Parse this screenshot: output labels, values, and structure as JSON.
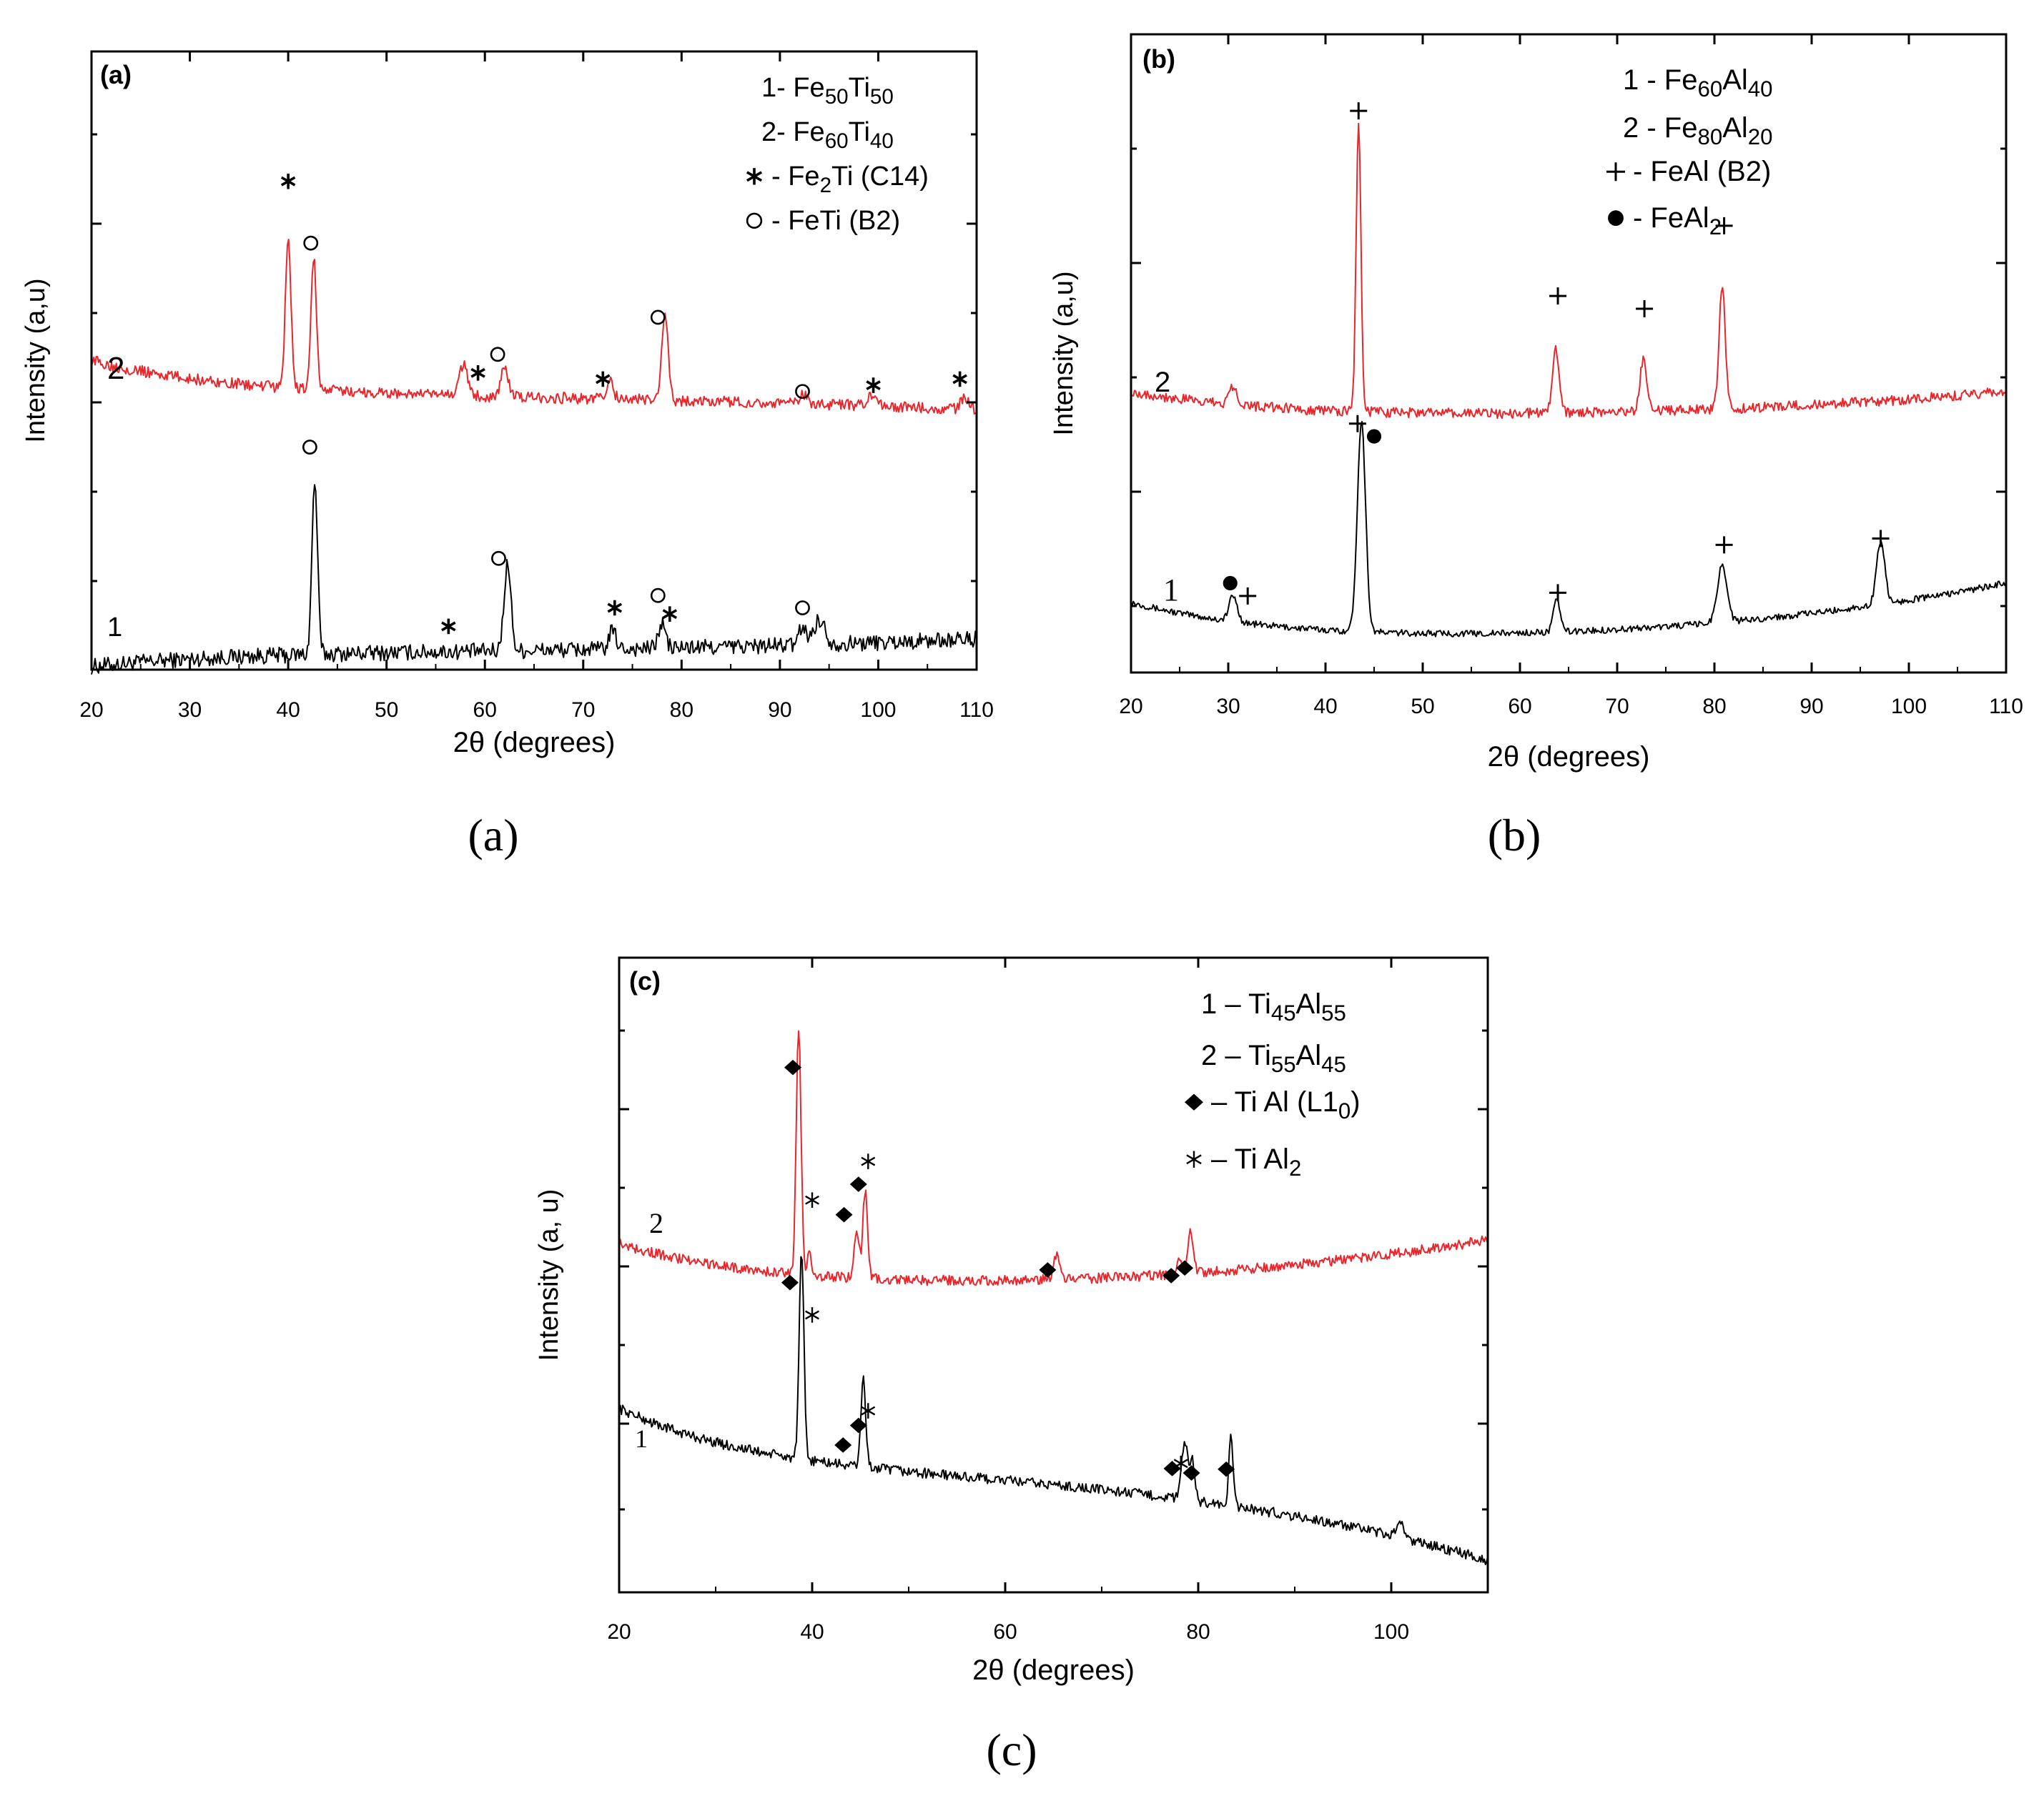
{
  "figure_type": "X-ray diffraction patterns",
  "colors": {
    "curve_1": "#000000",
    "curve_2": "#e8262b",
    "axis": "#000000"
  },
  "chart_data": [
    {
      "id": "a",
      "type": "line",
      "caption": "(a)",
      "panel_tag": "(a)",
      "xlabel": "2θ (degrees)",
      "ylabel": "Intensity (a,u)",
      "xlim": [
        20,
        110
      ],
      "ylim": [
        0,
        100
      ],
      "xticks": [
        20,
        30,
        40,
        50,
        60,
        70,
        80,
        90,
        100,
        110
      ],
      "legend": [
        {
          "id": "l1",
          "prefix": "1- Fe",
          "sub1": "50",
          "mid": "Ti",
          "sub2": "50",
          "tail": ""
        },
        {
          "id": "l2",
          "prefix": "2- Fe",
          "sub1": "60",
          "mid": "Ti",
          "sub2": "40",
          "tail": ""
        },
        {
          "id": "l3",
          "symbol": "asterisk",
          "prefix": " - Fe",
          "sub1": "2",
          "mid": "Ti (C14)",
          "sub2": "",
          "tail": ""
        },
        {
          "id": "l4",
          "symbol": "circle",
          "prefix": " - FeTi (B2)",
          "sub1": "",
          "mid": "",
          "sub2": "",
          "tail": ""
        }
      ],
      "series": [
        {
          "name": "1",
          "label": "1",
          "color": "#000000",
          "baseline": 3,
          "noise": 1.3,
          "start": 0.5,
          "end": 5,
          "peaks": [
            [
              42.7,
              28,
              0.4
            ],
            [
              62.3,
              14,
              0.5
            ],
            [
              73,
              3,
              0.5
            ],
            [
              78,
              4,
              0.5
            ],
            [
              92.3,
              3,
              0.5
            ],
            [
              94,
              4,
              0.8
            ]
          ]
        },
        {
          "name": "2",
          "label": "2",
          "color": "#e8262b",
          "baseline": 44,
          "noise": 0.9,
          "start": 50,
          "end": 42,
          "peaks": [
            [
              40,
              24,
              0.4
            ],
            [
              42.6,
              21,
              0.4
            ],
            [
              57.8,
              5,
              0.6
            ],
            [
              62,
              5,
              0.5
            ],
            [
              72.7,
              3,
              0.5
            ],
            [
              78.3,
              14,
              0.45
            ],
            [
              92.4,
              1.5,
              0.5
            ],
            [
              99.3,
              1.5,
              0.6
            ],
            [
              108.8,
              2,
              0.6
            ]
          ]
        }
      ],
      "markers": [
        {
          "sym": "asterisk",
          "x": 40,
          "y": 79
        },
        {
          "sym": "circle",
          "x": 42.3,
          "y": 69
        },
        {
          "sym": "asterisk",
          "x": 59.3,
          "y": 48
        },
        {
          "sym": "circle",
          "x": 61.3,
          "y": 51
        },
        {
          "sym": "asterisk",
          "x": 72,
          "y": 47
        },
        {
          "sym": "circle",
          "x": 77.6,
          "y": 57
        },
        {
          "sym": "circle",
          "x": 92.3,
          "y": 45
        },
        {
          "sym": "asterisk",
          "x": 99.5,
          "y": 46
        },
        {
          "sym": "asterisk",
          "x": 108.3,
          "y": 47
        },
        {
          "sym": "circle",
          "x": 42.2,
          "y": 36
        },
        {
          "sym": "circle",
          "x": 61.4,
          "y": 18
        },
        {
          "sym": "asterisk",
          "x": 56.3,
          "y": 7
        },
        {
          "sym": "asterisk",
          "x": 73.2,
          "y": 10
        },
        {
          "sym": "circle",
          "x": 77.6,
          "y": 12
        },
        {
          "sym": "asterisk",
          "x": 78.8,
          "y": 9
        },
        {
          "sym": "circle",
          "x": 92.3,
          "y": 10
        }
      ]
    },
    {
      "id": "b",
      "type": "line",
      "caption": "(b)",
      "panel_tag": "(b)",
      "xlabel": "2θ (degrees)",
      "ylabel": "Intensity (a,u)",
      "xlim": [
        20,
        110
      ],
      "ylim": [
        0,
        100
      ],
      "xticks": [
        20,
        30,
        40,
        50,
        60,
        70,
        80,
        90,
        100,
        110
      ],
      "legend": [
        {
          "id": "l1",
          "prefix": "1 - Fe",
          "sub1": "60",
          "mid": "Al",
          "sub2": "40",
          "tail": ""
        },
        {
          "id": "l2",
          "prefix": "2 - Fe",
          "sub1": "80",
          "mid": "Al",
          "sub2": "20",
          "tail": ""
        },
        {
          "id": "l3",
          "symbol": "plus",
          "prefix": " - FeAl (B2)",
          "sub1": "",
          "mid": "",
          "sub2": "",
          "tail": ""
        },
        {
          "id": "l4",
          "symbol": "dot",
          "prefix": " - FeAl",
          "sub1": "2",
          "mid": "",
          "sub2": "",
          "tail": ""
        }
      ],
      "series": [
        {
          "name": "1",
          "label": "1",
          "color": "#000000",
          "baseline": 5,
          "noise": 0.5,
          "start": 11,
          "end": 14,
          "peaks": [
            [
              30.5,
              4,
              0.6
            ],
            [
              43.7,
              33,
              0.6
            ],
            [
              63.8,
              5,
              0.5
            ],
            [
              80.8,
              9,
              0.7
            ],
            [
              97.1,
              10,
              0.6
            ]
          ]
        },
        {
          "name": "2",
          "label": "2",
          "color": "#e8262b",
          "baseline": 40,
          "noise": 0.8,
          "start": 44,
          "end": 44,
          "peaks": [
            [
              30.5,
              3,
              0.6
            ],
            [
              43.4,
              45,
              0.35
            ],
            [
              63.7,
              10,
              0.5
            ],
            [
              72.7,
              8,
              0.5
            ],
            [
              80.8,
              19,
              0.45
            ]
          ]
        }
      ],
      "markers": [
        {
          "sym": "plus",
          "x": 43.4,
          "y": 88
        },
        {
          "sym": "plus",
          "x": 63.9,
          "y": 59
        },
        {
          "sym": "plus",
          "x": 72.8,
          "y": 57
        },
        {
          "sym": "plus",
          "x": 81,
          "y": 70
        },
        {
          "sym": "plus",
          "x": 43.3,
          "y": 39
        },
        {
          "sym": "dot",
          "x": 45,
          "y": 37
        },
        {
          "sym": "dot",
          "x": 30.2,
          "y": 14
        },
        {
          "sym": "plus",
          "x": 32,
          "y": 12
        },
        {
          "sym": "plus",
          "x": 63.9,
          "y": 12.5
        },
        {
          "sym": "plus",
          "x": 81,
          "y": 20
        },
        {
          "sym": "plus",
          "x": 97.1,
          "y": 21
        }
      ]
    },
    {
      "id": "c",
      "type": "line",
      "caption": "(c)",
      "panel_tag": "(c)",
      "xlabel": "2θ (degrees)",
      "ylabel": "Intensity (a, u)",
      "xlim": [
        20,
        110
      ],
      "ylim": [
        0,
        100
      ],
      "xticks": [
        20,
        40,
        60,
        80,
        100
      ],
      "legend": [
        {
          "id": "l1",
          "prefix": "1 –  Ti",
          "sub1": "45",
          "mid": "Al",
          "sub2": "55",
          "tail": ""
        },
        {
          "id": "l2",
          "prefix": "2 –  Ti",
          "sub1": "55",
          "mid": "Al",
          "sub2": "45",
          "tail": ""
        },
        {
          "id": "l3",
          "symbol": "diamond",
          "prefix": " –  Ti Al (L1",
          "sub1": "0",
          "mid": ")",
          "sub2": "",
          "tail": ""
        },
        {
          "id": "l4",
          "symbol": "star",
          "prefix": " –  Ti Al",
          "sub1": "2",
          "mid": "",
          "sub2": "",
          "tail": ""
        }
      ],
      "series": [
        {
          "name": "1",
          "label": "1",
          "color": "#000000",
          "baseline": 18,
          "noise": 0.8,
          "start": 29,
          "end": 5,
          "peaks": [
            [
              38.9,
              32,
              0.35
            ],
            [
              45.3,
              14,
              0.35
            ],
            [
              78.6,
              9,
              0.45
            ],
            [
              79.4,
              6,
              0.35
            ],
            [
              83.4,
              11,
              0.3
            ],
            [
              101,
              2,
              0.6
            ]
          ]
        },
        {
          "name": "2",
          "label": "2",
          "color": "#e8262b",
          "baseline": 48,
          "noise": 0.8,
          "start": 55,
          "end": 55.5,
          "peaks": [
            [
              38.6,
              39,
              0.35
            ],
            [
              39.7,
              4,
              0.3
            ],
            [
              44.6,
              8,
              0.35
            ],
            [
              45.5,
              14,
              0.35
            ],
            [
              65.3,
              4,
              0.4
            ],
            [
              79.2,
              7,
              0.4
            ],
            [
              78,
              3,
              0.3
            ]
          ]
        }
      ],
      "markers": [
        {
          "sym": "diamond",
          "x": 38,
          "y": 82.7
        },
        {
          "sym": "star",
          "x": 40,
          "y": 61.8
        },
        {
          "sym": "diamond",
          "x": 43.3,
          "y": 59.5
        },
        {
          "sym": "diamond",
          "x": 44.8,
          "y": 64.3
        },
        {
          "sym": "star",
          "x": 45.8,
          "y": 67.9
        },
        {
          "sym": "diamond",
          "x": 64.4,
          "y": 50.8
        },
        {
          "sym": "diamond",
          "x": 77.2,
          "y": 49.9
        },
        {
          "sym": "diamond",
          "x": 78.6,
          "y": 51.1
        },
        {
          "sym": "diamond",
          "x": 37.7,
          "y": 48.8
        },
        {
          "sym": "star",
          "x": 40,
          "y": 43.7
        },
        {
          "sym": "star",
          "x": 45.8,
          "y": 28.6
        },
        {
          "sym": "diamond",
          "x": 44.8,
          "y": 26.3
        },
        {
          "sym": "diamond",
          "x": 43.2,
          "y": 23.2
        },
        {
          "sym": "star",
          "x": 78.2,
          "y": 20.3
        },
        {
          "sym": "diamond",
          "x": 77.3,
          "y": 19.5
        },
        {
          "sym": "diamond",
          "x": 79.3,
          "y": 18.8
        },
        {
          "sym": "diamond",
          "x": 82.9,
          "y": 19.4
        }
      ]
    }
  ]
}
